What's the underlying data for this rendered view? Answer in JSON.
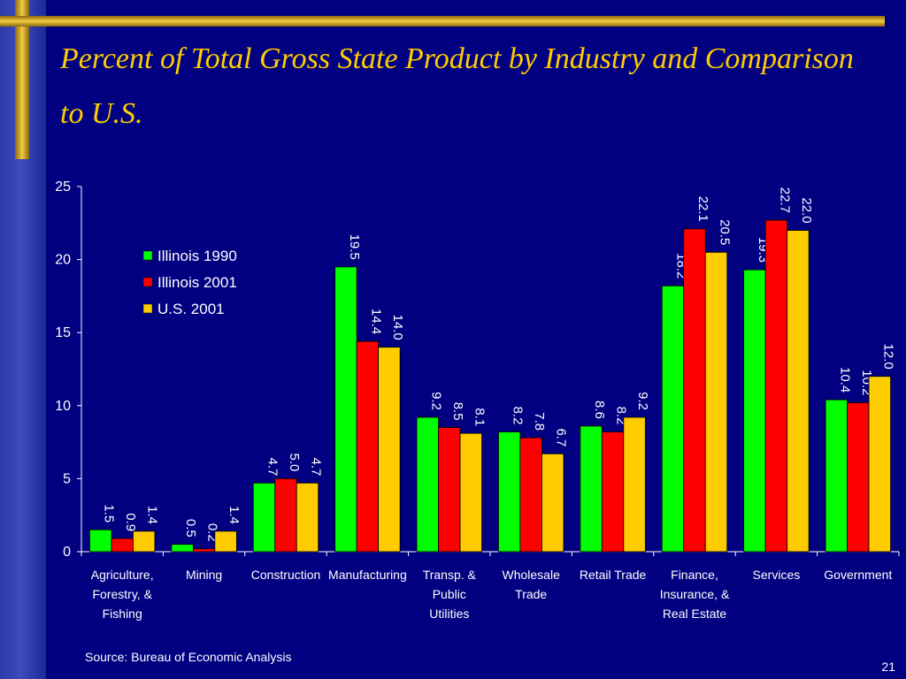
{
  "slide": {
    "title": "Percent of Total Gross State Product by Industry and Comparison to U.S.",
    "source": "Source:  Bureau of Economic Analysis",
    "page_number": "21"
  },
  "colors": {
    "background": "#000080",
    "title": "#ffcc00",
    "Illinois 1990": "#00ff00",
    "Illinois 2001": "#ff0000",
    "U.S. 2001": "#ffcc00"
  },
  "chart_data": {
    "type": "bar",
    "title": "",
    "xlabel": "",
    "ylabel": "",
    "ylim": [
      0,
      25
    ],
    "yticks": [
      "0",
      "5",
      "10",
      "15",
      "20",
      "25"
    ],
    "grid": false,
    "legend_position": "top-left",
    "categories": [
      [
        "Agriculture,",
        "Forestry, &",
        "Fishing"
      ],
      [
        "Mining"
      ],
      [
        "Construction"
      ],
      [
        "Manufacturing"
      ],
      [
        "Transp. &",
        "Public",
        "Utilities"
      ],
      [
        "Wholesale",
        "Trade"
      ],
      [
        "Retail Trade"
      ],
      [
        "Finance,",
        "Insurance, &",
        "Real Estate"
      ],
      [
        "Services"
      ],
      [
        "Government"
      ]
    ],
    "series": [
      {
        "name": "Illinois 1990",
        "values": [
          1.5,
          0.5,
          4.7,
          19.5,
          9.2,
          8.2,
          8.6,
          18.2,
          19.3,
          10.4
        ],
        "labels": [
          "1.5",
          "0.5",
          "4.7",
          "19.5",
          "9.2",
          "8.2",
          "8.6",
          "18.2",
          "19.3",
          "10.4"
        ]
      },
      {
        "name": "Illinois 2001",
        "values": [
          0.9,
          0.2,
          5.0,
          14.4,
          8.5,
          7.8,
          8.2,
          22.1,
          22.7,
          10.2
        ],
        "labels": [
          "0.9",
          "0.2",
          "5.0",
          "14.4",
          "8.5",
          "7.8",
          "8.2",
          "22.1",
          "22.7",
          "10.2"
        ]
      },
      {
        "name": "U.S. 2001",
        "values": [
          1.4,
          1.4,
          4.7,
          14.0,
          8.1,
          6.7,
          9.2,
          20.5,
          22.0,
          12.0
        ],
        "labels": [
          "1.4",
          "1.4",
          "4.7",
          "14.0",
          "8.1",
          "6.7",
          "9.2",
          "20.5",
          "22.0",
          "12.0"
        ]
      }
    ]
  }
}
